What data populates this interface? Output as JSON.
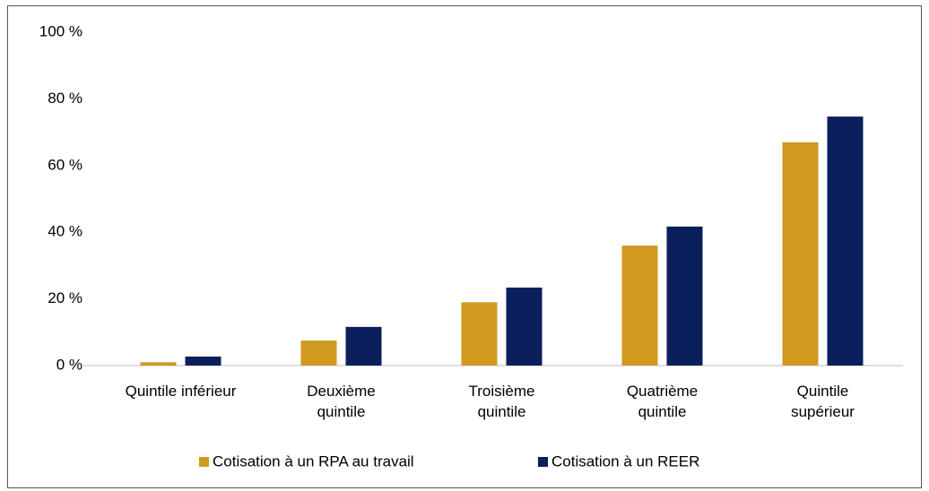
{
  "chart_data": {
    "type": "bar",
    "categories": [
      "Quintile inférieur",
      "Deuxième\nquintile",
      "Troisième\nquintile",
      "Quatrième\nquintile",
      "Quintile\nsupérieur"
    ],
    "series": [
      {
        "name": "Cotisation à un RPA au travail",
        "color": "#d09a21",
        "values": [
          1,
          7.5,
          19,
          36,
          67
        ]
      },
      {
        "name": "Cotisation à un REER",
        "color": "#0b1f5c",
        "values": [
          2.7,
          11.6,
          23.4,
          41.7,
          74.7
        ]
      }
    ],
    "ylim": [
      0,
      100
    ],
    "yticks": [
      {
        "value": 0,
        "label": "0 %"
      },
      {
        "value": 20,
        "label": "20 %"
      },
      {
        "value": 40,
        "label": "40 %"
      },
      {
        "value": 60,
        "label": "60 %"
      },
      {
        "value": 80,
        "label": "80 %"
      },
      {
        "value": 100,
        "label": "100 %"
      }
    ],
    "grid": false,
    "legend": "bottom"
  }
}
